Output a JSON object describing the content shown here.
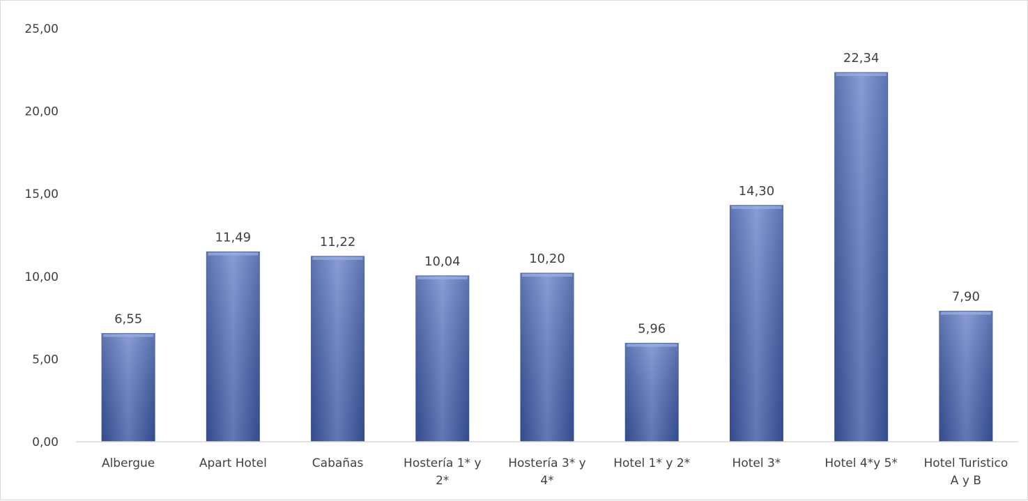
{
  "chart_data": {
    "type": "bar",
    "categories": [
      [
        "Albergue"
      ],
      [
        "Apart Hotel"
      ],
      [
        "Cabañas"
      ],
      [
        "Hostería 1* y",
        "2*"
      ],
      [
        "Hostería 3* y",
        "4*"
      ],
      [
        "Hotel 1* y 2*"
      ],
      [
        "Hotel 3*"
      ],
      [
        "Hotel 4*y 5*"
      ],
      [
        "Hotel Turistico",
        "A y B"
      ]
    ],
    "values": [
      6.55,
      11.49,
      11.22,
      10.04,
      10.2,
      5.96,
      14.3,
      22.34,
      7.9
    ],
    "data_labels": [
      "6,55",
      "11,49",
      "11,22",
      "10,04",
      "10,20",
      "5,96",
      "14,30",
      "22,34",
      "7,90"
    ],
    "y_ticks": [
      0,
      5,
      10,
      15,
      20,
      25
    ],
    "y_tick_labels": [
      "0,00",
      "5,00",
      "10,00",
      "15,00",
      "20,00",
      "25,00"
    ],
    "ylim": [
      0,
      25
    ],
    "grid": false,
    "legend": "none",
    "title": "",
    "xlabel": "",
    "ylabel": "",
    "colors": {
      "bar": "#4a67b5",
      "bar_light": "#6f87cc",
      "bar_dark": "#3b56a0",
      "axis": "#d9d9d9",
      "text": "#404040"
    }
  }
}
